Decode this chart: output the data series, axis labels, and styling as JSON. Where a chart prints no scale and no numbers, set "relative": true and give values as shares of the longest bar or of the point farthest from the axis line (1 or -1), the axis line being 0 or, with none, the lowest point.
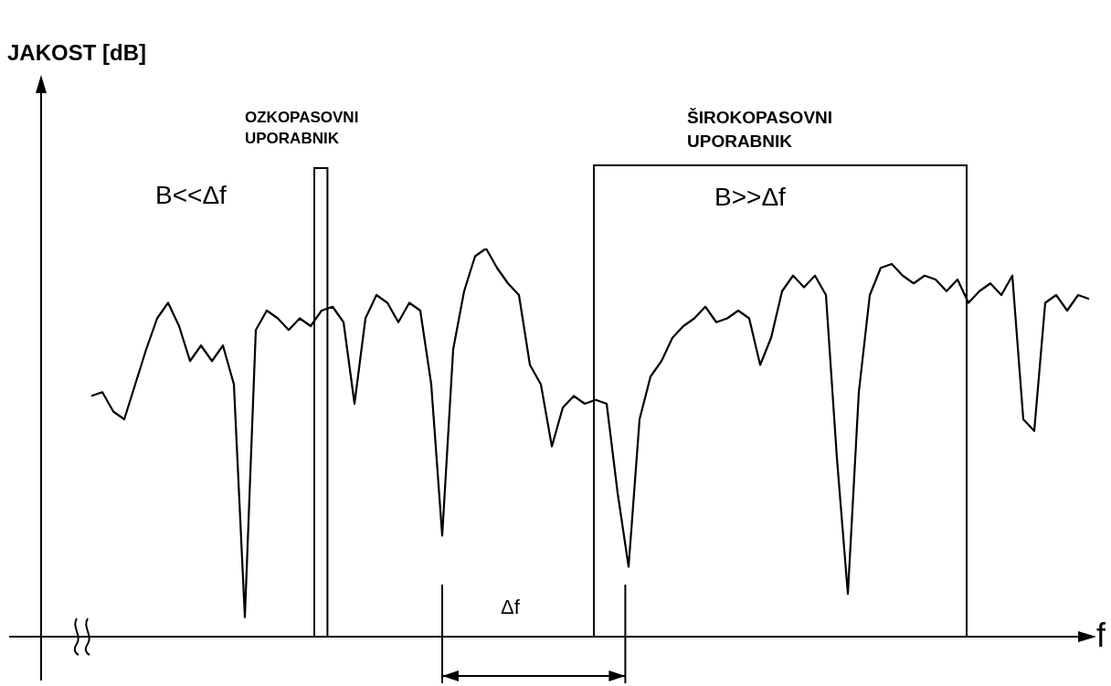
{
  "chart_data": {
    "type": "line",
    "relative": true,
    "xlabel": "f",
    "color": "#000000",
    "marker": "none",
    "categories": [
      null,
      null,
      null,
      null,
      null,
      null,
      null,
      null,
      null,
      null,
      null,
      null,
      null,
      null,
      null,
      null,
      null,
      null,
      null,
      null,
      null,
      null,
      null,
      null,
      null,
      null,
      null,
      null,
      null,
      null,
      null,
      null,
      null,
      null,
      null,
      null,
      null,
      null,
      null,
      null,
      null,
      null,
      null,
      null,
      null,
      null,
      null,
      null,
      null,
      null,
      null,
      null,
      null,
      null,
      null,
      null,
      null,
      null,
      null,
      null,
      null,
      null,
      null,
      null,
      null,
      null,
      null,
      null,
      null,
      null,
      null,
      null,
      null,
      null,
      null,
      null,
      null,
      null,
      null,
      null,
      null,
      null,
      null,
      null,
      null,
      null,
      null,
      null,
      null,
      null,
      null,
      null
    ],
    "values": [
      0.62,
      0.63,
      0.58,
      0.56,
      0.65,
      0.74,
      0.82,
      0.86,
      0.8,
      0.71,
      0.75,
      0.71,
      0.75,
      0.65,
      0.05,
      0.79,
      0.84,
      0.82,
      0.79,
      0.82,
      0.8,
      0.84,
      0.85,
      0.81,
      0.6,
      0.82,
      0.88,
      0.86,
      0.81,
      0.86,
      0.84,
      0.65,
      0.26,
      0.74,
      0.89,
      0.98,
      1.0,
      0.95,
      0.91,
      0.88,
      0.7,
      0.65,
      0.49,
      0.59,
      0.62,
      0.6,
      0.61,
      0.6,
      0.37,
      0.18,
      0.56,
      0.67,
      0.71,
      0.77,
      0.8,
      0.82,
      0.85,
      0.81,
      0.82,
      0.84,
      0.82,
      0.7,
      0.77,
      0.89,
      0.93,
      0.9,
      0.93,
      0.88,
      0.46,
      0.11,
      0.63,
      0.88,
      0.95,
      0.96,
      0.93,
      0.91,
      0.93,
      0.92,
      0.89,
      0.92,
      0.86,
      0.89,
      0.91,
      0.88,
      0.93,
      0.56,
      0.53,
      0.86,
      0.88,
      0.84,
      0.88,
      0.87
    ],
    "annotations": [
      "JAKOST [dB]",
      "OZKOPASOVNI UPORABNIK",
      "B<<Δf",
      "ŠIROKOPASOVNI UPORABNIK",
      "B>>Δf",
      "Δf"
    ]
  }
}
